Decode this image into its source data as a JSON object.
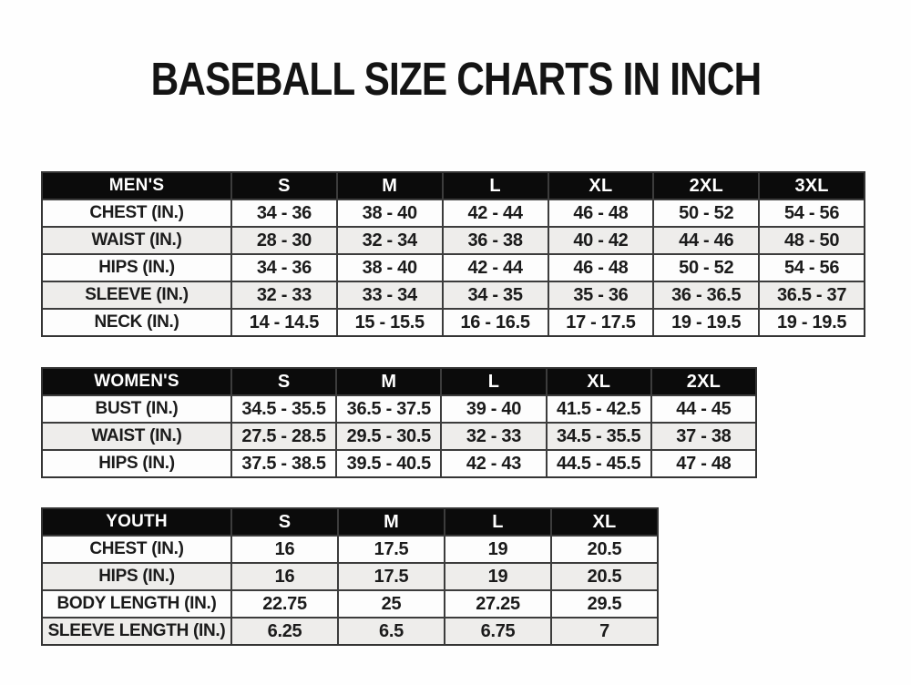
{
  "page": {
    "title": "BASEBALL SIZE CHARTS IN INCH"
  },
  "colors": {
    "page_bg": "#ffffff",
    "title_text": "#141414",
    "table_header_bg": "#0b0b0b",
    "table_header_text": "#ffffff",
    "row_bg": "#fdfdfd",
    "row_alt_bg": "#eeedeb",
    "grid_border": "#3c3c3c",
    "cell_text": "#1b1b1b"
  },
  "tables": [
    {
      "id": "mens",
      "header": {
        "label": "MEN'S",
        "columns": [
          "S",
          "M",
          "L",
          "XL",
          "2XL",
          "3XL"
        ]
      },
      "rows": [
        {
          "label": "CHEST (IN.)",
          "values": [
            "34 - 36",
            "38 - 40",
            "42 - 44",
            "46 - 48",
            "50 - 52",
            "54 - 56"
          ]
        },
        {
          "label": "WAIST (IN.)",
          "values": [
            "28 - 30",
            "32 - 34",
            "36 - 38",
            "40 - 42",
            "44 - 46",
            "48 - 50"
          ]
        },
        {
          "label": "HIPS (IN.)",
          "values": [
            "34 - 36",
            "38 - 40",
            "42 - 44",
            "46 - 48",
            "50 - 52",
            "54 - 56"
          ]
        },
        {
          "label": "SLEEVE (IN.)",
          "values": [
            "32 - 33",
            "33 - 34",
            "34 - 35",
            "35 - 36",
            "36 - 36.5",
            "36.5 - 37"
          ]
        },
        {
          "label": "NECK (IN.)",
          "values": [
            "14 - 14.5",
            "15 - 15.5",
            "16 - 16.5",
            "17 - 17.5",
            "19 - 19.5",
            "19 - 19.5"
          ]
        }
      ]
    },
    {
      "id": "womens",
      "header": {
        "label": "WOMEN'S",
        "columns": [
          "S",
          "M",
          "L",
          "XL",
          "2XL"
        ]
      },
      "rows": [
        {
          "label": "BUST (IN.)",
          "values": [
            "34.5 - 35.5",
            "36.5 - 37.5",
            "39 - 40",
            "41.5 - 42.5",
            "44 - 45"
          ]
        },
        {
          "label": "WAIST (IN.)",
          "values": [
            "27.5 - 28.5",
            "29.5 - 30.5",
            "32 - 33",
            "34.5 - 35.5",
            "37 - 38"
          ]
        },
        {
          "label": "HIPS (IN.)",
          "values": [
            "37.5 - 38.5",
            "39.5 - 40.5",
            "42 - 43",
            "44.5 - 45.5",
            "47 - 48"
          ]
        }
      ]
    },
    {
      "id": "youth",
      "header": {
        "label": "YOUTH",
        "columns": [
          "S",
          "M",
          "L",
          "XL"
        ]
      },
      "rows": [
        {
          "label": "CHEST (IN.)",
          "values": [
            "16",
            "17.5",
            "19",
            "20.5"
          ]
        },
        {
          "label": "HIPS (IN.)",
          "values": [
            "16",
            "17.5",
            "19",
            "20.5"
          ]
        },
        {
          "label": "BODY LENGTH (IN.)",
          "values": [
            "22.75",
            "25",
            "27.25",
            "29.5"
          ]
        },
        {
          "label": "SLEEVE LENGTH (IN.)",
          "values": [
            "6.25",
            "6.5",
            "6.75",
            "7"
          ]
        }
      ]
    }
  ]
}
